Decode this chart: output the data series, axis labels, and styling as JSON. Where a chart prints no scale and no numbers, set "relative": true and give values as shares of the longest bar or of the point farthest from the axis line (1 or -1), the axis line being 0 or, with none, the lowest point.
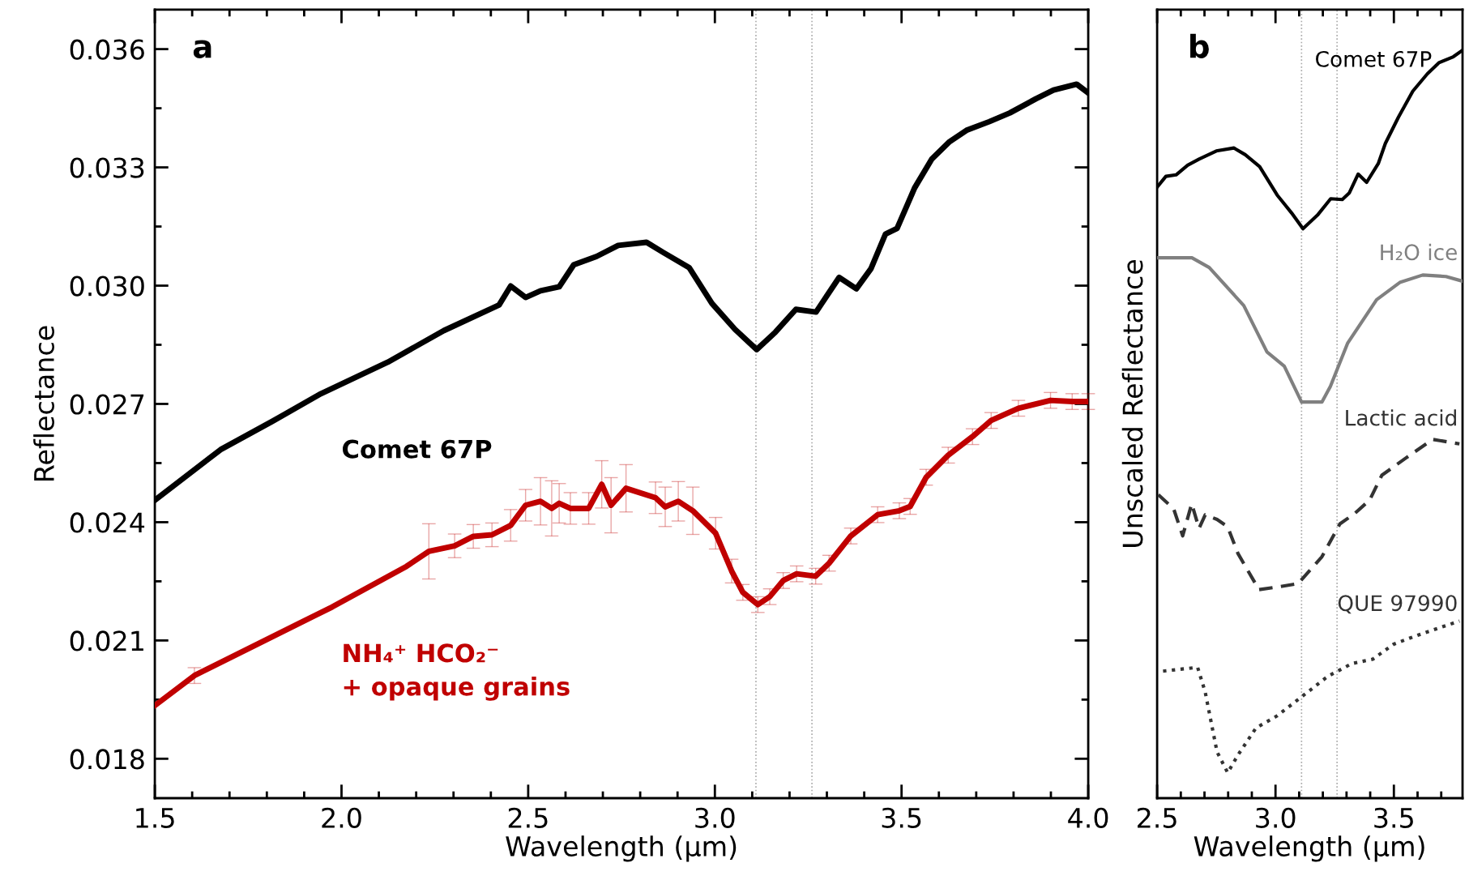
{
  "chart_data": [
    {
      "type": "line",
      "title": "a",
      "xlabel": "Wavelength (µm)",
      "ylabel": "Reflectance",
      "xlim": [
        1.5,
        4.0
      ],
      "ylim": [
        0.017,
        0.037
      ],
      "xticks": [
        1.5,
        {
          "value": 2,
          "label": "2.0"
        },
        2.5,
        {
          "value": 3,
          "label": "3.0"
        },
        3.5,
        {
          "value": 4,
          "label": "4.0"
        }
      ],
      "yticks": [
        0.018,
        0.021,
        0.024,
        0.027,
        {
          "value": 0.03,
          "label": "0.030"
        },
        0.033,
        0.036
      ],
      "ref_lines": [
        {
          "axis": "x",
          "value": 3.11,
          "color": "#aaaaaa",
          "line_style": "dotted"
        },
        {
          "axis": "x",
          "value": 3.26,
          "color": "#aaaaaa",
          "line_style": "dotted"
        }
      ],
      "grid": false,
      "legend": false,
      "series": [
        {
          "name": "Comet 67P",
          "color": "#000000",
          "line_style": "solid",
          "x": [
            1.5,
            1.676,
            1.815,
            1.945,
            2.124,
            2.274,
            2.422,
            2.453,
            2.493,
            2.533,
            2.583,
            2.622,
            2.683,
            2.741,
            2.817,
            2.862,
            2.931,
            2.992,
            3.054,
            3.112,
            3.162,
            3.217,
            3.271,
            3.333,
            3.379,
            3.418,
            3.457,
            3.488,
            3.535,
            3.581,
            3.627,
            3.674,
            3.735,
            3.79,
            3.86,
            3.907,
            3.969,
            4.0
          ],
          "values": [
            0.02456,
            0.02584,
            0.02656,
            0.02726,
            0.02806,
            0.02886,
            0.02951,
            0.02999,
            0.0297,
            0.02987,
            0.02997,
            0.03053,
            0.03074,
            0.03102,
            0.0311,
            0.03084,
            0.03046,
            0.02955,
            0.02889,
            0.02838,
            0.02882,
            0.0294,
            0.02933,
            0.03021,
            0.02992,
            0.03043,
            0.03131,
            0.03145,
            0.03248,
            0.03321,
            0.03364,
            0.03394,
            0.03416,
            0.03438,
            0.03474,
            0.03496,
            0.03511,
            0.03489
          ]
        },
        {
          "name": "NH₄⁺ HCO₂⁻\n+ opaque grains",
          "color": "#c00000",
          "line_style": "solid",
          "x": [
            1.5,
            1.606,
            1.775,
            1.975,
            2.174,
            2.234,
            2.303,
            2.353,
            2.403,
            2.453,
            2.493,
            2.533,
            2.563,
            2.583,
            2.613,
            2.662,
            2.697,
            2.722,
            2.762,
            2.841,
            2.867,
            2.902,
            2.941,
            3.002,
            3.045,
            3.075,
            3.115,
            3.147,
            3.183,
            3.219,
            3.27,
            3.306,
            3.364,
            3.436,
            3.494,
            3.523,
            3.566,
            3.625,
            3.69,
            3.74,
            3.813,
            3.899,
            3.957,
            4.0
          ],
          "values": [
            0.01935,
            0.02011,
            0.02091,
            0.02185,
            0.02288,
            0.02326,
            0.0234,
            0.02364,
            0.02368,
            0.02392,
            0.02443,
            0.02453,
            0.02435,
            0.02448,
            0.02435,
            0.02435,
            0.02496,
            0.02443,
            0.02486,
            0.02462,
            0.02439,
            0.02453,
            0.02429,
            0.02372,
            0.02276,
            0.02222,
            0.02191,
            0.02211,
            0.02252,
            0.02269,
            0.02263,
            0.02296,
            0.02365,
            0.02419,
            0.02429,
            0.0244,
            0.02514,
            0.0257,
            0.02617,
            0.02658,
            0.02689,
            0.02709,
            0.02706,
            0.02706
          ],
          "errors": [
            null,
            0.0002,
            null,
            null,
            null,
            0.0007,
            0.0003,
            0.0003,
            0.0003,
            0.0004,
            0.0004,
            0.0006,
            0.0007,
            0.0005,
            0.0004,
            0.0004,
            0.0006,
            0.0007,
            0.0006,
            0.0004,
            0.0005,
            0.0005,
            0.0006,
            0.0004,
            0.0003,
            0.0002,
            0.0002,
            0.0002,
            0.0002,
            0.0002,
            0.0002,
            0.0002,
            0.0002,
            0.0002,
            0.0002,
            0.0002,
            0.0002,
            0.0002,
            0.0002,
            0.0002,
            0.0002,
            0.0002,
            0.0002,
            0.0002
          ]
        }
      ]
    },
    {
      "type": "line",
      "title": "b",
      "xlabel": "Wavelength (µm)",
      "ylabel": "Unscaled Reflectance",
      "relative": true,
      "tick_labels": "x",
      "xlim": [
        2.5,
        3.79
      ],
      "xticks": [
        2.5,
        {
          "value": 3,
          "label": "3.0"
        },
        3.5
      ],
      "ref_lines": [
        {
          "axis": "x",
          "value": 3.11,
          "color": "#aaaaaa",
          "line_style": "dotted"
        },
        {
          "axis": "x",
          "value": 3.26,
          "color": "#aaaaaa",
          "line_style": "dotted"
        }
      ],
      "grid": false,
      "legend": false,
      "series": [
        {
          "name": "Comet 67P",
          "color": "#000000",
          "line_style": "solid",
          "x": [
            2.501,
            2.537,
            2.58,
            2.629,
            2.677,
            2.75,
            2.824,
            2.872,
            2.933,
            3.007,
            3.068,
            3.116,
            3.177,
            3.233,
            3.282,
            3.312,
            3.349,
            3.385,
            3.434,
            3.464,
            3.519,
            3.58,
            3.641,
            3.69,
            3.751,
            3.787
          ],
          "values": [
            0.818,
            0.832,
            0.834,
            0.847,
            0.855,
            0.866,
            0.87,
            0.861,
            0.845,
            0.807,
            0.783,
            0.762,
            0.78,
            0.802,
            0.801,
            0.81,
            0.835,
            0.824,
            0.849,
            0.876,
            0.911,
            0.946,
            0.969,
            0.984,
            0.992,
            1.0
          ]
        },
        {
          "name": "H₂O ice",
          "color": "#808080",
          "line_style": "solid",
          "x": [
            2.507,
            2.647,
            2.72,
            2.866,
            2.964,
            3.037,
            3.11,
            3.196,
            3.232,
            3.305,
            3.427,
            3.525,
            3.622,
            3.72,
            3.787
          ],
          "values": [
            0.723,
            0.723,
            0.71,
            0.659,
            0.597,
            0.578,
            0.53,
            0.53,
            0.551,
            0.609,
            0.667,
            0.69,
            0.7,
            0.698,
            0.692
          ]
        },
        {
          "name": "Lactic acid",
          "color": "#333333",
          "line_style": "dashed",
          "x": [
            2.505,
            2.57,
            2.608,
            2.646,
            2.677,
            2.703,
            2.753,
            2.798,
            2.842,
            2.93,
            3.019,
            3.095,
            3.196,
            3.272,
            3.335,
            3.398,
            3.449,
            3.55,
            3.664,
            3.777
          ],
          "values": [
            0.406,
            0.387,
            0.351,
            0.394,
            0.361,
            0.379,
            0.373,
            0.363,
            0.327,
            0.279,
            0.283,
            0.287,
            0.323,
            0.367,
            0.381,
            0.399,
            0.432,
            0.455,
            0.48,
            0.474
          ]
        },
        {
          "name": "QUE 97990",
          "color": "#333333",
          "line_style": "dotted",
          "x": [
            2.525,
            2.671,
            2.703,
            2.753,
            2.798,
            2.842,
            2.918,
            3.006,
            3.12,
            3.221,
            3.322,
            3.411,
            3.499,
            3.6,
            3.777
          ],
          "values": [
            0.17,
            0.175,
            0.142,
            0.062,
            0.034,
            0.058,
            0.094,
            0.11,
            0.138,
            0.163,
            0.18,
            0.186,
            0.206,
            0.218,
            0.237
          ]
        }
      ]
    }
  ]
}
